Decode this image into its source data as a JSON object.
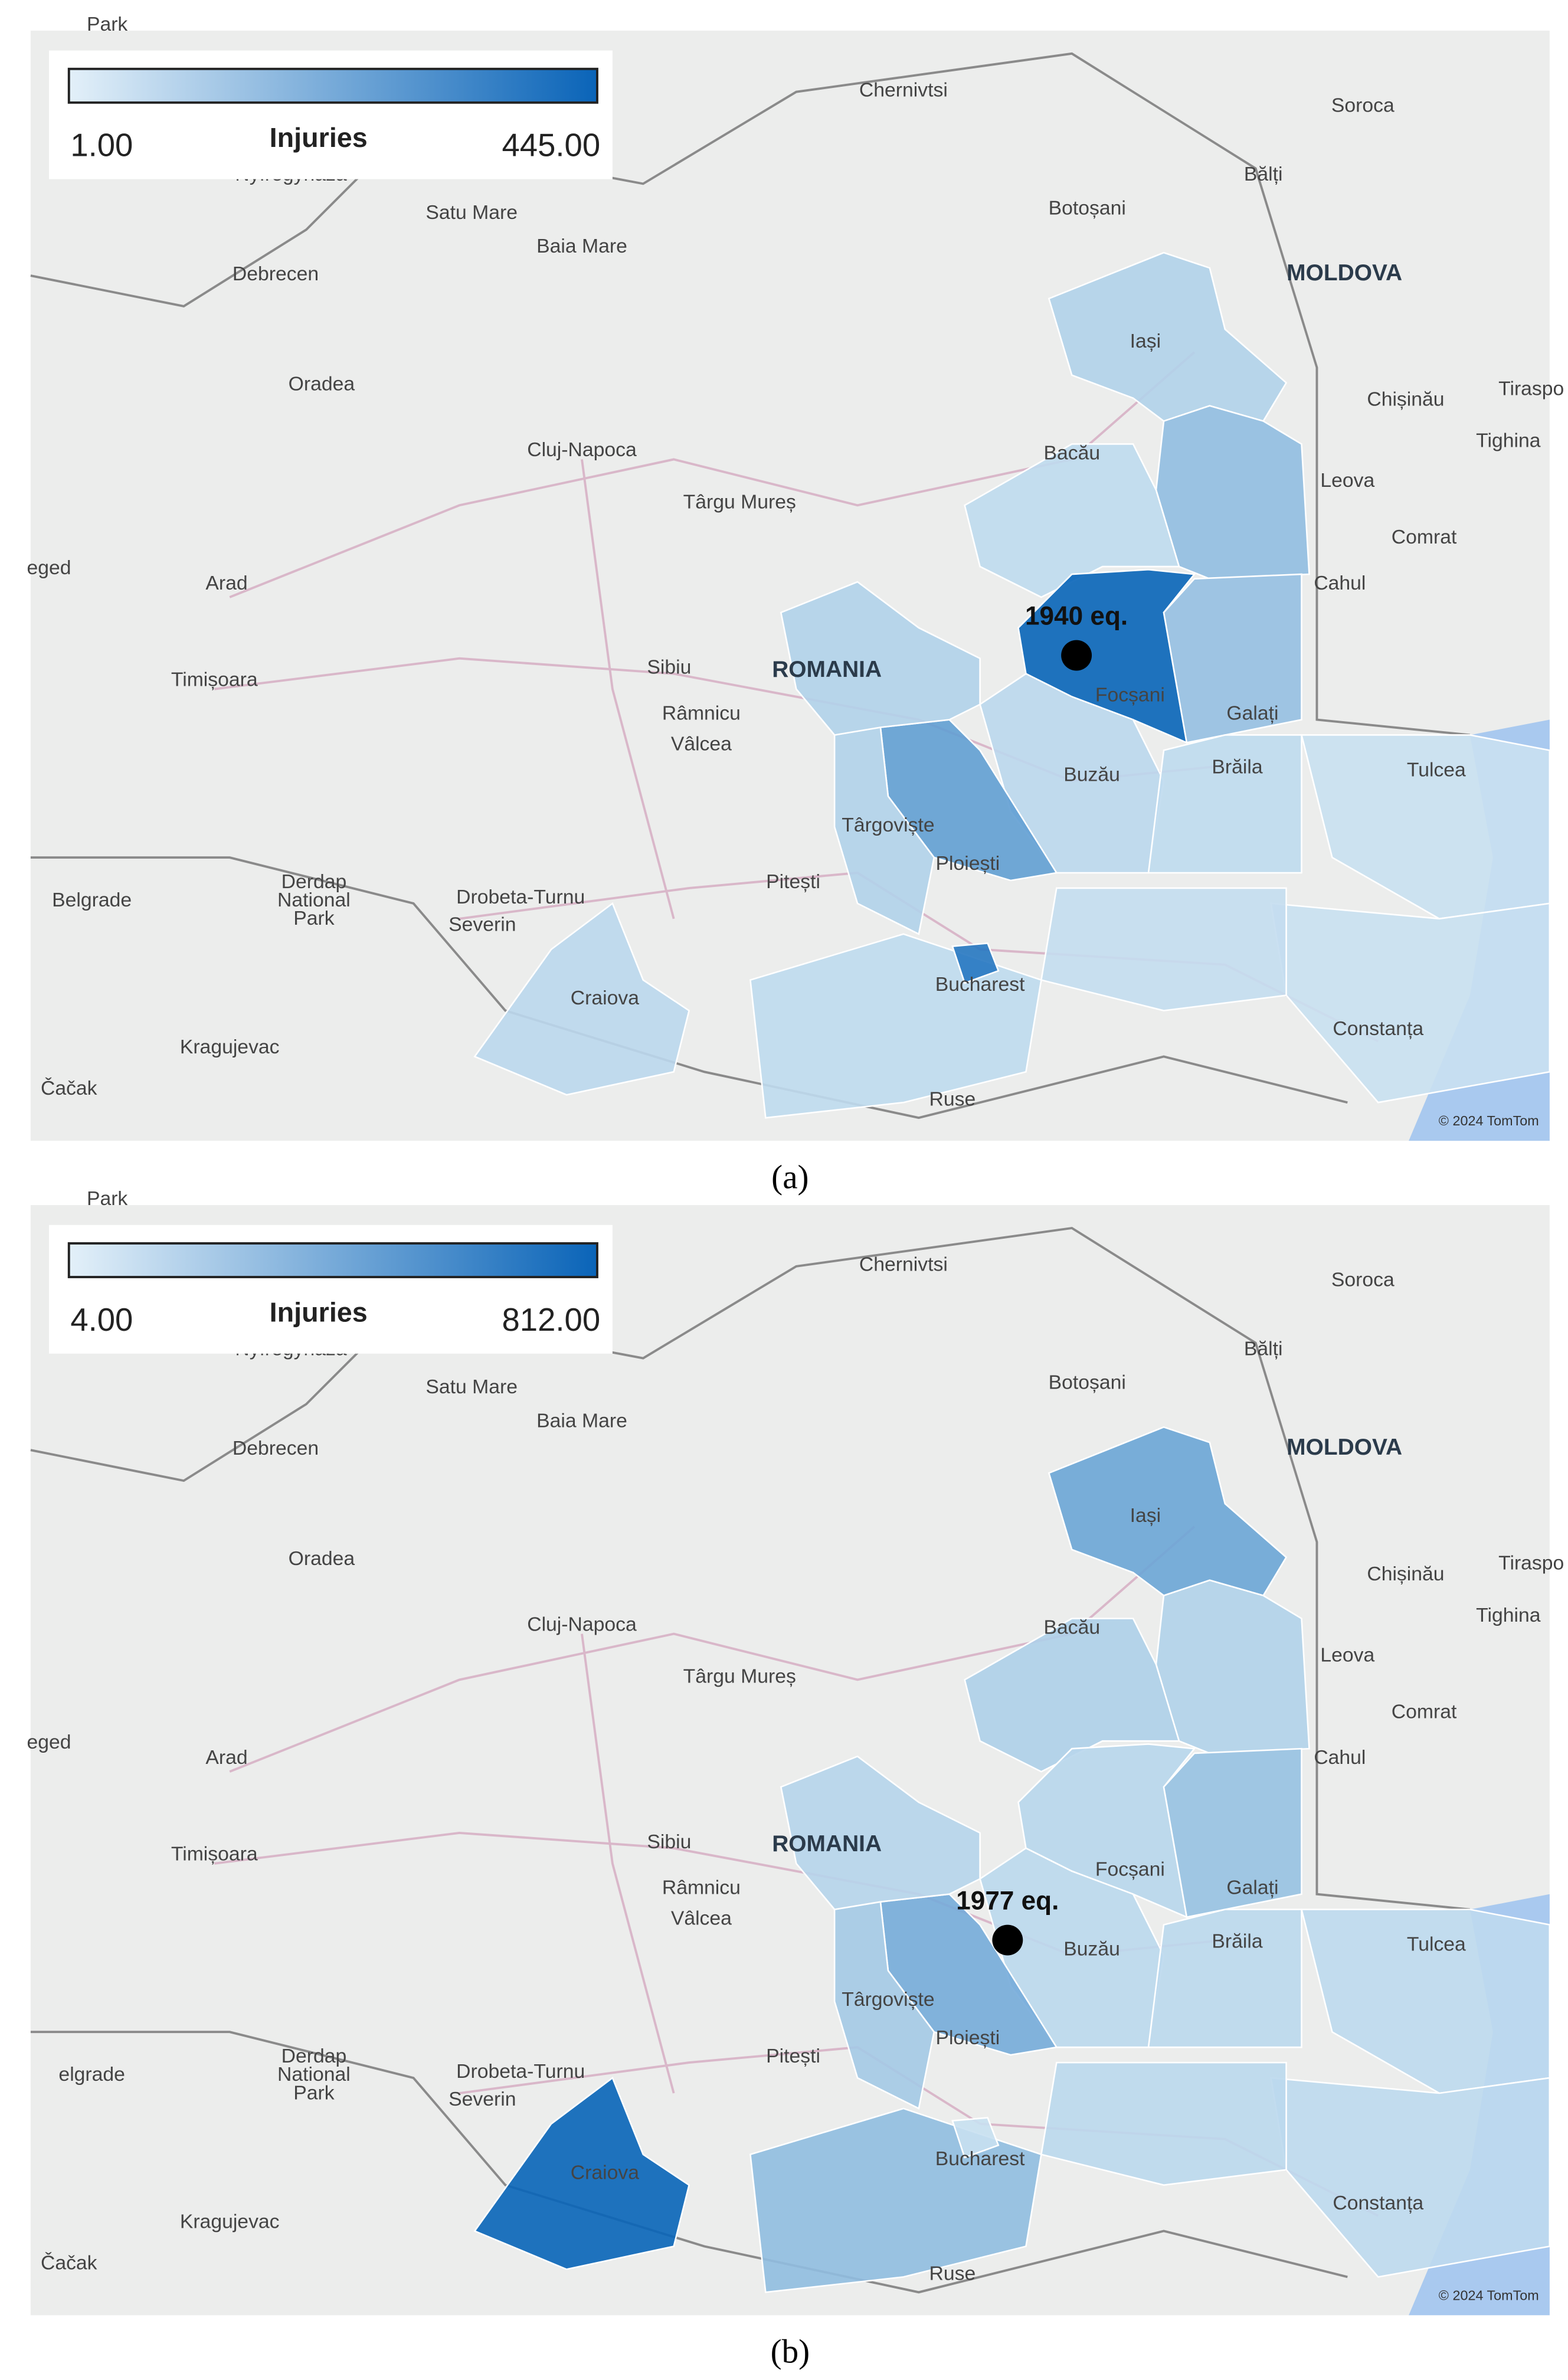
{
  "panels": [
    {
      "legend": {
        "title": "Injuries",
        "min": {
          "value": 1,
          "label": "1.00"
        },
        "max": {
          "value": 445,
          "label": "445.00"
        }
      },
      "event_label": "1940 eq.",
      "region_values": [
        80,
        150,
        50,
        445,
        140,
        60,
        50,
        30,
        30,
        40,
        250,
        80,
        80,
        50,
        60,
        380
      ],
      "places": [
        "Park",
        "Chernivtsi",
        "Soroca",
        "Nyíregyháza",
        "Satu Mare",
        "Baia Mare",
        "Botoșani",
        "Bălți",
        "Debrecen",
        "MOLDOVA",
        "Iași",
        "Oradea",
        "Chișinău",
        "Tiraspo",
        "Tighina",
        "Cluj-Napoca",
        "Bacău",
        "Leova",
        "Târgu Mureș",
        "Comrat",
        "eged",
        "Arad",
        "Cahul",
        "Sibiu",
        "ROMANIA",
        "Focșani",
        "Galați",
        "Timișoara",
        "Râmnicu",
        "Vâlcea",
        "Buzău",
        "Brăila",
        "Tulcea",
        "Târgoviște",
        "Ploiești",
        "Belgrade",
        "Pitești",
        "Derdap",
        "National",
        "Park",
        "Drobeta-Turnu",
        "Severin",
        "Bucharest",
        "Craiova",
        "Constanța",
        "Kragujevac",
        "Čačak",
        "Ruse"
      ],
      "attribution": "© 2024 TomTom",
      "caption": "(a)"
    },
    {
      "legend": {
        "title": "Injuries",
        "min": {
          "value": 4,
          "label": "4.00"
        },
        "max": {
          "value": 812,
          "label": "812.00"
        }
      },
      "event_label": "1977 eq.",
      "region_values": [
        420,
        150,
        160,
        120,
        250,
        110,
        110,
        100,
        100,
        110,
        380,
        200,
        130,
        280,
        812,
        60
      ],
      "places": [
        "Park",
        "Chernivtsi",
        "Soroca",
        "Nyíregyháza",
        "Satu Mare",
        "Baia Mare",
        "Botoșani",
        "Bălți",
        "Debrecen",
        "MOLDOVA",
        "Iași",
        "Oradea",
        "Chișinău",
        "Tiraspo",
        "Tighina",
        "Cluj-Napoca",
        "Bacău",
        "Leova",
        "Târgu Mureș",
        "Comrat",
        "eged",
        "Arad",
        "Cahul",
        "Sibiu",
        "ROMANIA",
        "Focșani",
        "Galați",
        "Timișoara",
        "Râmnicu",
        "Vâlcea",
        "Buzău",
        "Brăila",
        "Tulcea",
        "Târgoviște",
        "Ploiești",
        "elgrade",
        "Pitești",
        "Derdap",
        "National",
        "Park",
        "Drobeta-Turnu",
        "Severin",
        "Bucharest",
        "Craiova",
        "Constanța",
        "Kragujevac",
        "Čačak",
        "Ruse"
      ],
      "attribution": "© 2024 TomTom",
      "caption": "(b)"
    }
  ]
}
